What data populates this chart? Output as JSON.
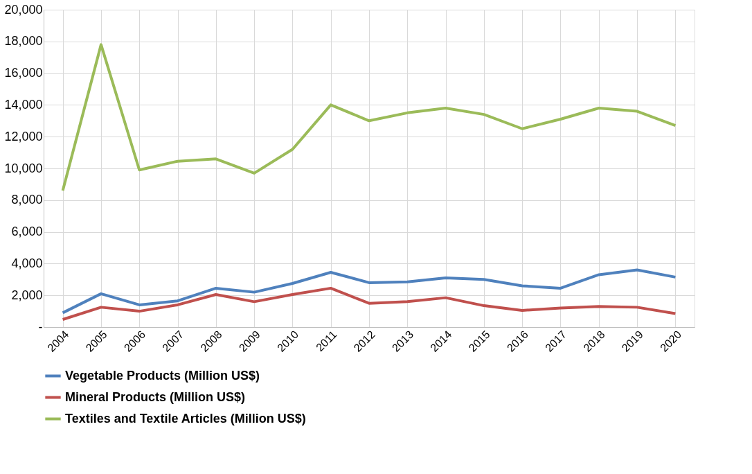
{
  "chart_data": {
    "type": "line",
    "categories": [
      "2004",
      "2005",
      "2006",
      "2007",
      "2008",
      "2009",
      "2010",
      "2011",
      "2012",
      "2013",
      "2014",
      "2015",
      "2016",
      "2017",
      "2018",
      "2019",
      "2020"
    ],
    "series": [
      {
        "name": "Vegetable Products (Million US$)",
        "color": "#4f81bd",
        "values": [
          900,
          2100,
          1400,
          1650,
          2450,
          2200,
          2750,
          3450,
          2800,
          2850,
          3100,
          3000,
          2600,
          2450,
          3300,
          3600,
          3150
        ]
      },
      {
        "name": "Mineral Products (Million US$)",
        "color": "#c0504d",
        "values": [
          480,
          1250,
          1000,
          1400,
          2050,
          1600,
          2050,
          2450,
          1500,
          1600,
          1850,
          1350,
          1050,
          1200,
          1300,
          1250,
          850
        ]
      },
      {
        "name": "Textiles and Textile Articles (Million US$)",
        "color": "#9bbb59",
        "values": [
          8600,
          17800,
          9900,
          10450,
          10600,
          9700,
          11200,
          14000,
          13000,
          13500,
          13800,
          13400,
          12500,
          13100,
          13800,
          13600,
          12700
        ]
      }
    ],
    "ylim": [
      0,
      20000
    ],
    "yticks": [
      {
        "value": 0,
        "label": "-"
      },
      {
        "value": 2000,
        "label": "2,000"
      },
      {
        "value": 4000,
        "label": "4,000"
      },
      {
        "value": 6000,
        "label": "6,000"
      },
      {
        "value": 8000,
        "label": "8,000"
      },
      {
        "value": 10000,
        "label": "10,000"
      },
      {
        "value": 12000,
        "label": "12,000"
      },
      {
        "value": 14000,
        "label": "14,000"
      },
      {
        "value": 16000,
        "label": "16,000"
      },
      {
        "value": 18000,
        "label": "18,000"
      },
      {
        "value": 20000,
        "label": "20,000"
      }
    ],
    "grid": true,
    "legend": "bottom",
    "line_style": "solid"
  }
}
